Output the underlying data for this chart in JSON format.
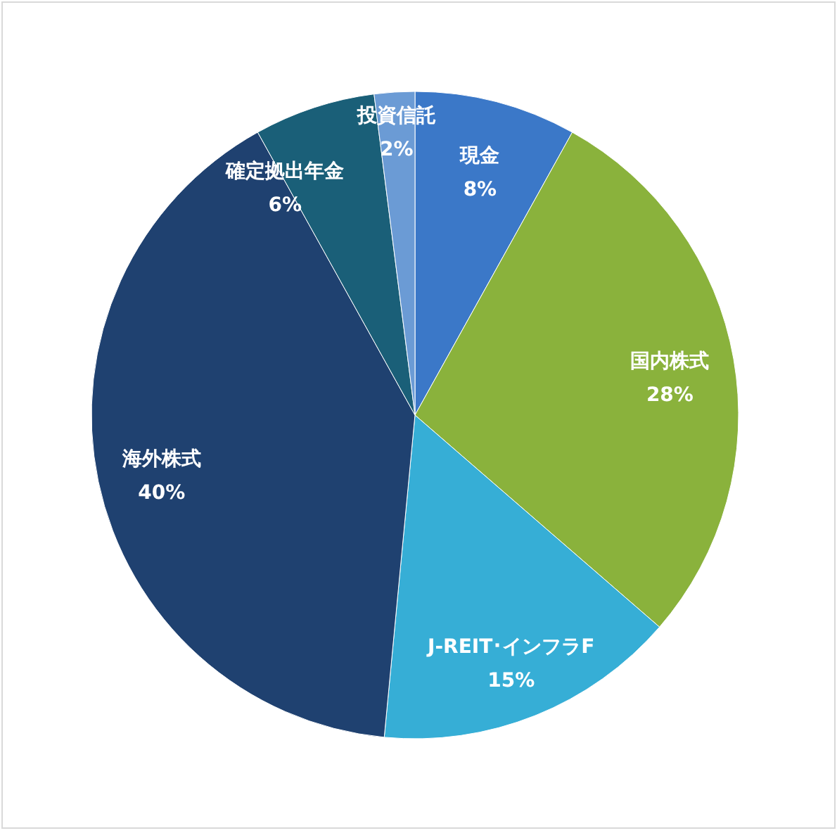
{
  "chart_data": {
    "type": "pie",
    "categories": [
      "現金",
      "国内株式",
      "J-REIT･インフラF",
      "海外株式",
      "確定拠出年金",
      "投資信託"
    ],
    "values": [
      8,
      28,
      15,
      40,
      6,
      2
    ],
    "value_labels": [
      "8%",
      "28%",
      "15%",
      "40%",
      "6%",
      "2%"
    ],
    "colors": [
      "#3b78c8",
      "#8ab23c",
      "#36aed6",
      "#1f4170",
      "#1a5f78",
      "#6b9bd5"
    ]
  }
}
